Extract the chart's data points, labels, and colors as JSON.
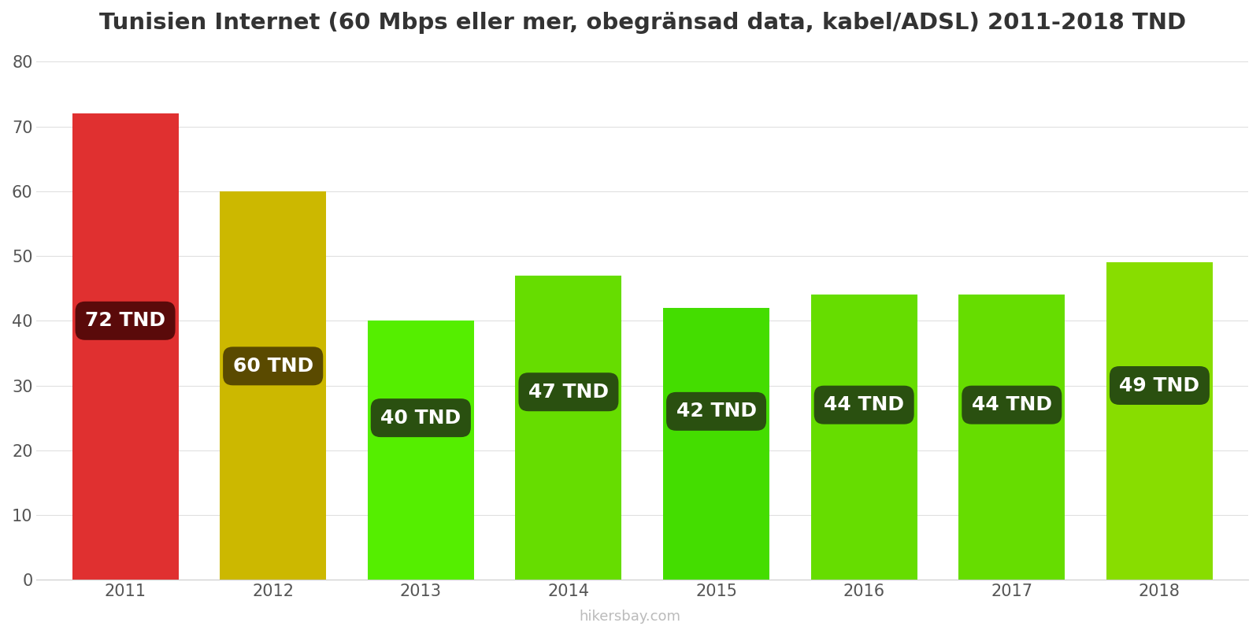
{
  "years": [
    2011,
    2012,
    2013,
    2014,
    2015,
    2016,
    2017,
    2018
  ],
  "values": [
    72,
    60,
    40,
    47,
    42,
    44,
    44,
    49
  ],
  "bar_colors": [
    "#e03030",
    "#ccb800",
    "#55ee00",
    "#66dd00",
    "#44dd00",
    "#66dd00",
    "#66dd00",
    "#88dd00"
  ],
  "label_bg_colors": [
    "#5a0a0a",
    "#5a4a00",
    "#2a5010",
    "#2a5010",
    "#2a5010",
    "#2a5010",
    "#2a5010",
    "#2a5010"
  ],
  "title": "Tunisien Internet (60 Mbps eller mer, obegränsad data, kabel/ADSL) 2011-2018 TND",
  "ylabel_ticks": [
    0,
    10,
    20,
    30,
    40,
    50,
    60,
    70,
    80
  ],
  "ylim": [
    0,
    82
  ],
  "watermark": "hikersbay.com",
  "title_fontsize": 21,
  "tick_fontsize": 15,
  "label_fontsize": 18,
  "bar_width": 0.72
}
